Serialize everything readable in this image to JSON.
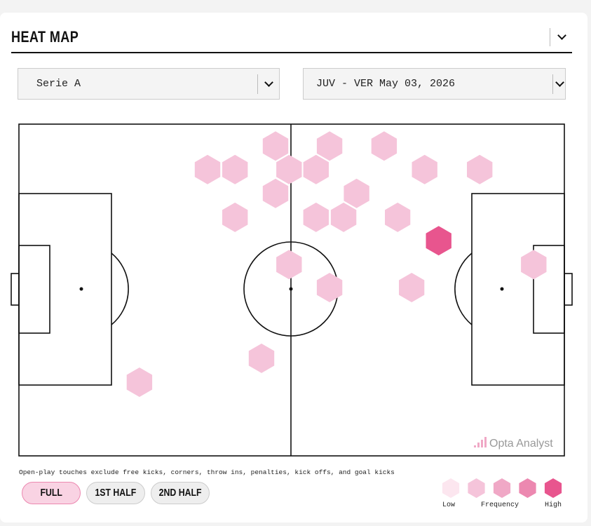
{
  "header": {
    "title": "HEAT MAP"
  },
  "filters": {
    "competition": "Serie A",
    "match": "JUV - VER May 03, 2026"
  },
  "heatmap": {
    "pitch": {
      "length": 105,
      "width": 68
    },
    "watermark": "Opta Analyst",
    "colors": [
      "#fce6ef",
      "#f5c4da",
      "#f0a8c6",
      "#ec88b0",
      "#e8558e"
    ],
    "hexes": [
      {
        "x": 49.4,
        "y": 4.5,
        "level": 2
      },
      {
        "x": 59.8,
        "y": 4.5,
        "level": 2
      },
      {
        "x": 70.3,
        "y": 4.5,
        "level": 2
      },
      {
        "x": 36.3,
        "y": 9.3,
        "level": 2
      },
      {
        "x": 41.6,
        "y": 9.3,
        "level": 2
      },
      {
        "x": 52.0,
        "y": 9.3,
        "level": 2
      },
      {
        "x": 57.2,
        "y": 9.3,
        "level": 2
      },
      {
        "x": 78.1,
        "y": 9.3,
        "level": 2
      },
      {
        "x": 88.7,
        "y": 9.3,
        "level": 2
      },
      {
        "x": 49.4,
        "y": 14.2,
        "level": 2
      },
      {
        "x": 65.0,
        "y": 14.2,
        "level": 2
      },
      {
        "x": 41.6,
        "y": 19.1,
        "level": 2
      },
      {
        "x": 57.2,
        "y": 19.1,
        "level": 2
      },
      {
        "x": 62.5,
        "y": 19.1,
        "level": 2
      },
      {
        "x": 72.9,
        "y": 19.1,
        "level": 2
      },
      {
        "x": 80.8,
        "y": 23.9,
        "level": 5
      },
      {
        "x": 52.0,
        "y": 28.8,
        "level": 2
      },
      {
        "x": 99.1,
        "y": 28.8,
        "level": 2
      },
      {
        "x": 59.8,
        "y": 33.5,
        "level": 2
      },
      {
        "x": 75.6,
        "y": 33.5,
        "level": 2
      },
      {
        "x": 46.7,
        "y": 48.0,
        "level": 2
      },
      {
        "x": 23.2,
        "y": 52.9,
        "level": 2
      }
    ]
  },
  "footnote": "Open-play touches exclude free kicks, corners, throw ins, penalties, kick offs, and goal kicks",
  "periods": [
    "FULL",
    "1ST HALF",
    "2ND HALF"
  ],
  "legend": {
    "low": "Low",
    "middle": "Frequency",
    "high": "High"
  }
}
